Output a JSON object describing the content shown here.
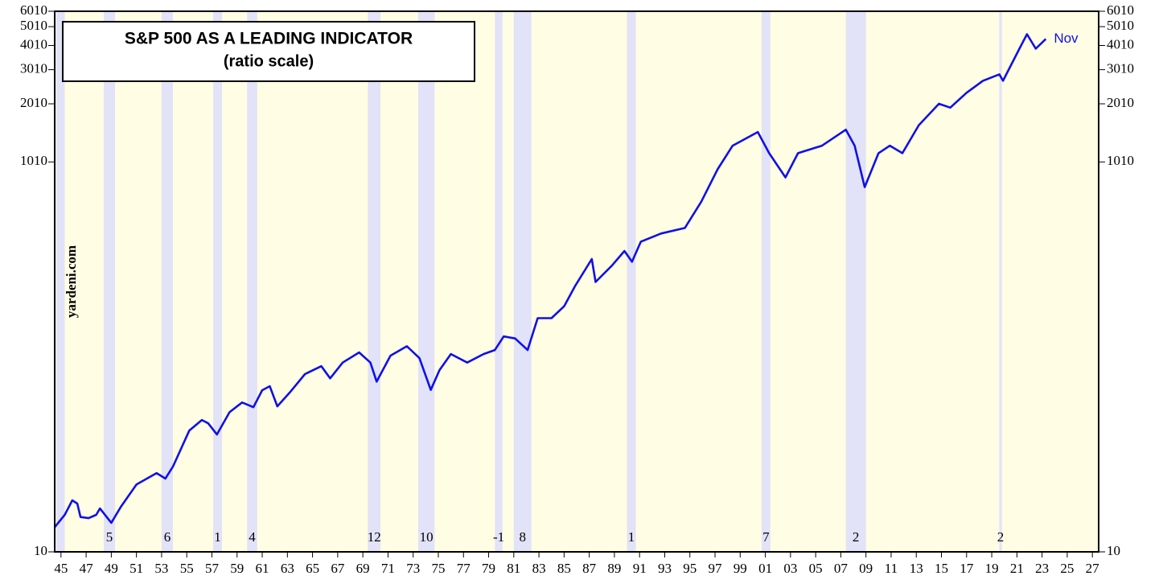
{
  "chart_data": {
    "type": "line",
    "title": "S&P 500 AS A LEADING INDICATOR",
    "subtitle": "(ratio scale)",
    "source": "yardeni.com",
    "end_label": "Nov",
    "log_scale": true,
    "xlim": [
      1945,
      2028
    ],
    "ylim": [
      10,
      6010
    ],
    "yticks": [
      10,
      1010,
      2010,
      3010,
      4010,
      5010,
      6010
    ],
    "xticks": [
      {
        "value": 1945.5,
        "label": "45"
      },
      {
        "value": 1947.5,
        "label": "47"
      },
      {
        "value": 1949.5,
        "label": "49"
      },
      {
        "value": 1951.5,
        "label": "51"
      },
      {
        "value": 1953.5,
        "label": "53"
      },
      {
        "value": 1955.5,
        "label": "55"
      },
      {
        "value": 1957.5,
        "label": "57"
      },
      {
        "value": 1959.5,
        "label": "59"
      },
      {
        "value": 1961.5,
        "label": "61"
      },
      {
        "value": 1963.5,
        "label": "63"
      },
      {
        "value": 1965.5,
        "label": "65"
      },
      {
        "value": 1967.5,
        "label": "67"
      },
      {
        "value": 1969.5,
        "label": "69"
      },
      {
        "value": 1971.5,
        "label": "71"
      },
      {
        "value": 1973.5,
        "label": "73"
      },
      {
        "value": 1975.5,
        "label": "75"
      },
      {
        "value": 1977.5,
        "label": "77"
      },
      {
        "value": 1979.5,
        "label": "79"
      },
      {
        "value": 1981.5,
        "label": "81"
      },
      {
        "value": 1983.5,
        "label": "83"
      },
      {
        "value": 1985.5,
        "label": "85"
      },
      {
        "value": 1987.5,
        "label": "87"
      },
      {
        "value": 1989.5,
        "label": "89"
      },
      {
        "value": 1991.5,
        "label": "91"
      },
      {
        "value": 1993.5,
        "label": "93"
      },
      {
        "value": 1995.5,
        "label": "95"
      },
      {
        "value": 1997.5,
        "label": "97"
      },
      {
        "value": 1999.5,
        "label": "99"
      },
      {
        "value": 2001.5,
        "label": "01"
      },
      {
        "value": 2003.5,
        "label": "03"
      },
      {
        "value": 2005.5,
        "label": "05"
      },
      {
        "value": 2007.5,
        "label": "07"
      },
      {
        "value": 2009.5,
        "label": "09"
      },
      {
        "value": 2011.5,
        "label": "11"
      },
      {
        "value": 2013.5,
        "label": "13"
      },
      {
        "value": 2015.5,
        "label": "15"
      },
      {
        "value": 2017.5,
        "label": "17"
      },
      {
        "value": 2019.5,
        "label": "19"
      },
      {
        "value": 2021.5,
        "label": "21"
      },
      {
        "value": 2023.5,
        "label": "23"
      },
      {
        "value": 2025.5,
        "label": "25"
      },
      {
        "value": 2027.5,
        "label": "27"
      }
    ],
    "recessions": [
      {
        "start": 1945.1,
        "end": 1945.8
      },
      {
        "start": 1948.9,
        "end": 1949.8,
        "label": "5"
      },
      {
        "start": 1953.5,
        "end": 1954.4,
        "label": "6"
      },
      {
        "start": 1957.6,
        "end": 1958.3,
        "label": "1"
      },
      {
        "start": 1960.3,
        "end": 1961.1,
        "label": "4"
      },
      {
        "start": 1969.9,
        "end": 1970.9,
        "label": "12"
      },
      {
        "start": 1973.9,
        "end": 1975.2,
        "label": "10"
      },
      {
        "start": 1980.0,
        "end": 1980.6,
        "label": "-1"
      },
      {
        "start": 1981.5,
        "end": 1982.9,
        "label": "8"
      },
      {
        "start": 1990.5,
        "end": 1991.2,
        "label": "1"
      },
      {
        "start": 2001.2,
        "end": 2001.9,
        "label": "7"
      },
      {
        "start": 2007.9,
        "end": 2009.5,
        "label": "2"
      },
      {
        "start": 2020.1,
        "end": 2020.3,
        "label": "2"
      }
    ],
    "band_color": "#e2e2f8",
    "background": "#fffde3",
    "series": [
      {
        "name": "S&P 500",
        "color": "#1010e6",
        "x": [
          1945.0,
          1945.8,
          1946.4,
          1946.8,
          1947.05,
          1947.7,
          1948.3,
          1948.6,
          1949.5,
          1950.25,
          1951.5,
          1953.1,
          1953.8,
          1954.4,
          1955.7,
          1956.7,
          1957.2,
          1957.9,
          1958.9,
          1959.9,
          1960.8,
          1961.5,
          1962.1,
          1962.7,
          1963.7,
          1964.9,
          1966.2,
          1966.9,
          1967.9,
          1969.2,
          1970.1,
          1970.6,
          1971.7,
          1973.0,
          1974.0,
          1974.9,
          1975.6,
          1976.5,
          1977.8,
          1979.1,
          1980.0,
          1980.7,
          1981.6,
          1982.6,
          1983.4,
          1984.5,
          1985.5,
          1986.4,
          1987.7,
          1988.0,
          1989.3,
          1990.3,
          1990.9,
          1991.6,
          1993.2,
          1995.1,
          1996.4,
          1997.7,
          1998.9,
          2000.9,
          2001.8,
          2003.1,
          2004.1,
          2006.0,
          2007.9,
          2008.6,
          2009.4,
          2010.5,
          2011.4,
          2012.4,
          2013.7,
          2015.3,
          2016.2,
          2017.5,
          2018.8,
          2020.1,
          2020.4,
          2021.7,
          2022.3,
          2023.0,
          2023.8
        ],
        "values": [
          13.4,
          15.5,
          18.4,
          17.7,
          15.1,
          14.9,
          15.5,
          16.7,
          14.1,
          17.0,
          22.2,
          25.4,
          23.8,
          27.4,
          42,
          47.6,
          45.8,
          40.1,
          52.2,
          58.6,
          55.4,
          67.7,
          71,
          56,
          66,
          82,
          90,
          78,
          94,
          106,
          94,
          75,
          102,
          114,
          99,
          68,
          86,
          104,
          94,
          104,
          109,
          128,
          125,
          109,
          159,
          159,
          183,
          234,
          320,
          244,
          296,
          352,
          310,
          393,
          433,
          462,
          630,
          925,
          1224,
          1440,
          1120,
          841,
          1120,
          1224,
          1480,
          1224,
          750,
          1120,
          1224,
          1120,
          1560,
          2010,
          1920,
          2290,
          2640,
          2850,
          2640,
          3860,
          4580,
          3860,
          4330
        ]
      }
    ]
  }
}
